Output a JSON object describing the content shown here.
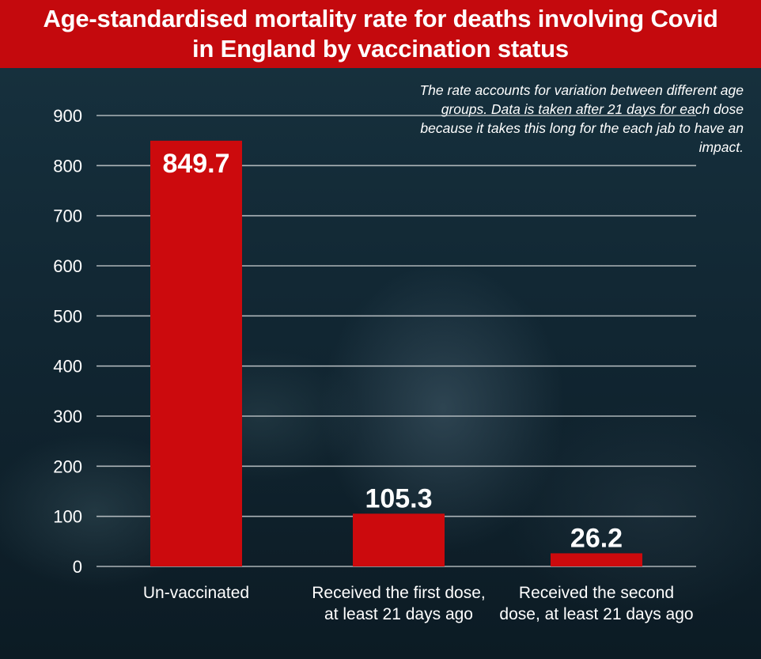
{
  "header": {
    "title_line1": "Age-standardised mortality rate for deaths involving Covid",
    "title_line2": "in England by vaccination status"
  },
  "note": "The rate accounts for variation between different age groups. Data is taken after 21 days for each dose because it takes this long for the each jab to have an impact.",
  "colors": {
    "header": "#c4090d",
    "bar": "#cc0a0d",
    "gridline": "#c8cdd0",
    "text": "#ffffff"
  },
  "chart_data": {
    "type": "bar",
    "title": "Age-standardised mortality rate for deaths involving Covid in England by vaccination status",
    "categories": [
      [
        "Un-vaccinated"
      ],
      [
        "Received the first dose,",
        "at least 21 days ago"
      ],
      [
        "Received the second",
        "dose, at least 21 days ago"
      ]
    ],
    "values": [
      849.7,
      105.3,
      26.2
    ],
    "value_labels": [
      "849.7",
      "105.3",
      "26.2"
    ],
    "ylim": [
      0,
      900
    ],
    "yticks": [
      0,
      100,
      200,
      300,
      400,
      500,
      600,
      700,
      800,
      900
    ],
    "grid": true,
    "xlabel": "",
    "ylabel": ""
  }
}
